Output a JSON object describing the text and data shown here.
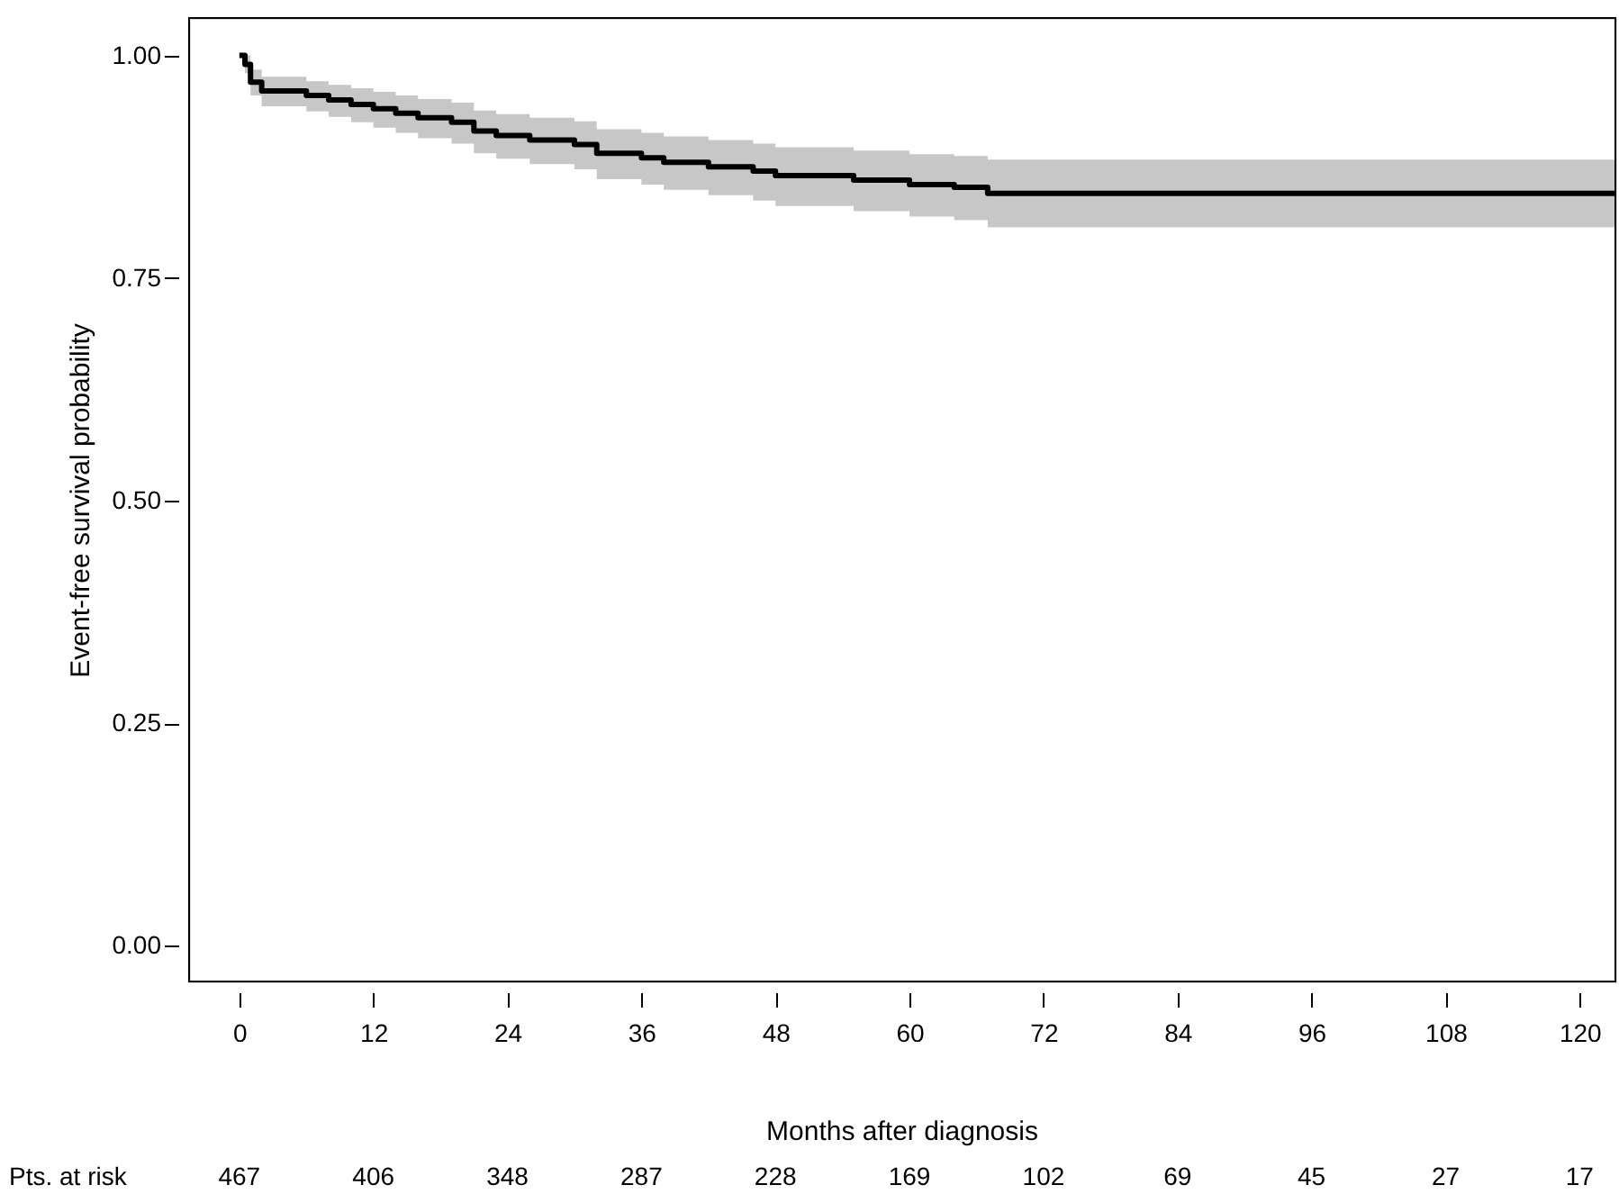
{
  "chart_data": {
    "type": "step",
    "xlabel": "Months after diagnosis",
    "ylabel": "Event-free survival probability",
    "xlim": [
      -4.5,
      123.2
    ],
    "xticks": [
      0,
      12,
      24,
      36,
      48,
      60,
      72,
      84,
      96,
      108,
      120
    ],
    "ylim": [
      -0.04,
      1.042
    ],
    "yticks": [
      {
        "value": 0,
        "label": "0.00"
      },
      {
        "value": 0.25,
        "label": "0.25"
      },
      {
        "value": 0.5,
        "label": "0.50"
      },
      {
        "value": 0.75,
        "label": "0.75"
      },
      {
        "value": 1,
        "label": "1.00"
      }
    ],
    "line_style": "solid",
    "marker": "none",
    "series": [
      {
        "color": "#000000",
        "x": [
          0,
          0.5,
          1,
          2,
          6,
          8,
          10,
          12,
          14,
          16,
          19,
          21,
          23,
          26,
          30,
          32,
          36,
          38,
          42,
          46,
          48,
          55,
          60,
          64,
          67,
          123.2
        ],
        "values": [
          1.0,
          0.99,
          0.97,
          0.96,
          0.955,
          0.95,
          0.945,
          0.94,
          0.935,
          0.93,
          0.925,
          0.915,
          0.91,
          0.905,
          0.9,
          0.89,
          0.885,
          0.88,
          0.875,
          0.87,
          0.865,
          0.86,
          0.855,
          0.852,
          0.845,
          0.845
        ],
        "lower": [
          1.0,
          0.98,
          0.955,
          0.943,
          0.937,
          0.931,
          0.925,
          0.919,
          0.913,
          0.907,
          0.901,
          0.89,
          0.884,
          0.878,
          0.872,
          0.861,
          0.855,
          0.849,
          0.843,
          0.837,
          0.831,
          0.825,
          0.819,
          0.815,
          0.807,
          0.807
        ],
        "upper": [
          1.0,
          1.0,
          0.984,
          0.976,
          0.971,
          0.967,
          0.963,
          0.959,
          0.955,
          0.951,
          0.947,
          0.938,
          0.934,
          0.93,
          0.926,
          0.917,
          0.913,
          0.909,
          0.905,
          0.901,
          0.897,
          0.893,
          0.889,
          0.887,
          0.883,
          0.883
        ]
      }
    ],
    "annotations": [
      "Pts. at risk",
      "467",
      "406",
      "348",
      "287",
      "228",
      "169",
      "102",
      "69",
      "45",
      "27",
      "17"
    ]
  }
}
